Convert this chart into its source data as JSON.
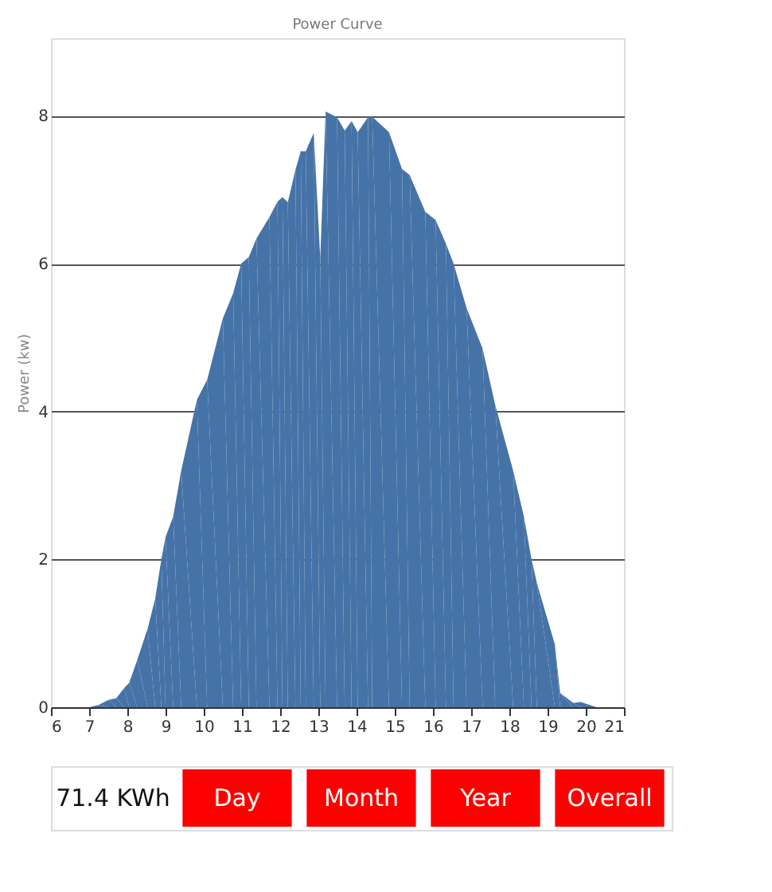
{
  "chart_data": {
    "type": "area",
    "title": "Power Curve",
    "ylabel": "Power (kw)",
    "x": [
      7.0,
      7.24,
      7.51,
      7.71,
      7.92,
      8.05,
      8.26,
      8.53,
      8.73,
      8.89,
      9.0,
      9.2,
      9.41,
      9.82,
      10.09,
      10.5,
      10.77,
      10.98,
      11.18,
      11.38,
      11.72,
      11.93,
      12.06,
      12.2,
      12.4,
      12.54,
      12.67,
      12.88,
      13.05,
      13.19,
      13.49,
      13.69,
      13.87,
      14.03,
      14.3,
      14.41,
      14.85,
      15.19,
      15.39,
      15.8,
      16.07,
      16.34,
      16.54,
      16.88,
      17.3,
      17.63,
      18.1,
      18.38,
      18.58,
      18.72,
      19.19,
      19.33,
      19.67,
      19.87,
      20.28
    ],
    "series": [
      {
        "color": "#4673a7",
        "values": [
          0,
          0.03,
          0.1,
          0.12,
          0.26,
          0.33,
          0.64,
          1.06,
          1.47,
          2.0,
          2.3,
          2.58,
          3.2,
          4.16,
          4.43,
          5.26,
          5.6,
          6.0,
          6.09,
          6.34,
          6.63,
          6.84,
          6.9,
          6.83,
          7.27,
          7.52,
          7.52,
          7.77,
          6.07,
          8.06,
          7.98,
          7.8,
          7.93,
          7.78,
          7.98,
          7.99,
          7.78,
          7.28,
          7.2,
          6.7,
          6.59,
          6.27,
          6.0,
          5.4,
          4.85,
          4.09,
          3.2,
          2.58,
          2.0,
          1.68,
          0.85,
          0.19,
          0.06,
          0.07,
          0
        ]
      }
    ],
    "xlim": [
      6,
      21
    ],
    "xticks": [
      6,
      7,
      8,
      9,
      10,
      11,
      12,
      13,
      14,
      15,
      16,
      17,
      18,
      19,
      20,
      21
    ],
    "ylim": [
      0,
      9.05
    ],
    "yticks": [
      0,
      2,
      4,
      6,
      8
    ],
    "grid": "y",
    "legend": false,
    "annotations": [
      "71.4 KWh",
      "Day",
      "Month",
      "Year",
      "Overall"
    ]
  }
}
